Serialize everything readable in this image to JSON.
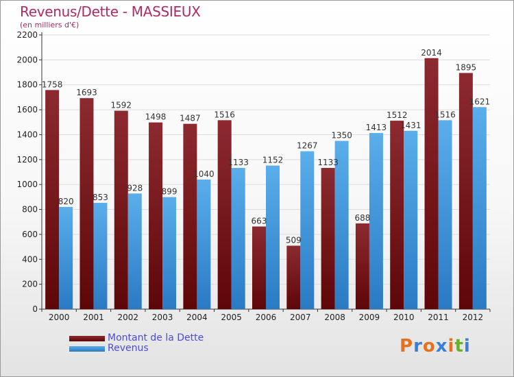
{
  "header": {
    "title": "Revenus/Dette - MASSIEUX",
    "subtitle": "(en milliers d'€)"
  },
  "colors": {
    "dette": "#7a1418",
    "revenus": "#3a8ed8",
    "title": "#b02a62",
    "legend_text": "#4a4ae0"
  },
  "chart_data": {
    "type": "bar",
    "categories": [
      "2000",
      "2001",
      "2002",
      "2003",
      "2004",
      "2005",
      "2006",
      "2007",
      "2008",
      "2009",
      "2010",
      "2011",
      "2012"
    ],
    "series": [
      {
        "name": "Montant de la Dette",
        "values": [
          1758,
          1693,
          1592,
          1498,
          1487,
          1516,
          663,
          509,
          1133,
          688,
          1512,
          2014,
          1895
        ]
      },
      {
        "name": "Revenus",
        "values": [
          820,
          853,
          928,
          899,
          1040,
          1133,
          1152,
          1267,
          1350,
          1413,
          1431,
          1516,
          1621
        ]
      }
    ],
    "yticks": [
      0,
      200,
      400,
      600,
      800,
      1000,
      1200,
      1400,
      1600,
      1800,
      2000,
      2200
    ],
    "ylim": [
      0,
      2200
    ],
    "grid": true,
    "legend_position": "bottom-left"
  },
  "logo": {
    "text": "Proxiti",
    "letters": [
      {
        "ch": "P",
        "color": "#e8701a"
      },
      {
        "ch": "r",
        "color": "#3a7fd8"
      },
      {
        "ch": "o",
        "color": "#e8701a"
      },
      {
        "ch": "x",
        "color": "#3a7fd8"
      },
      {
        "ch": "i",
        "color": "#e8701a"
      },
      {
        "ch": "t",
        "color": "#6bb02a"
      },
      {
        "ch": "i",
        "color": "#3a7fd8"
      }
    ]
  }
}
